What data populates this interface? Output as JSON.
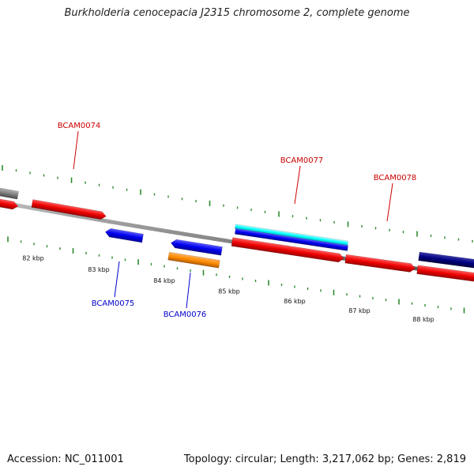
{
  "title": "Burkholderia cenocepacia J2315 chromosome 2, complete genome",
  "footer": {
    "accession": "Accession: NC_011001",
    "summary": "Topology: circular; Length: 3,217,062 bp; Genes: 2,819"
  },
  "scale_labels": [
    "82 kbp",
    "83 kbp",
    "84 kbp",
    "85 kbp",
    "86 kbp",
    "87 kbp",
    "88 kbp"
  ],
  "gene_labels": [
    {
      "name": "BCAM0074",
      "strand": "forward"
    },
    {
      "name": "BCAM0075",
      "strand": "reverse"
    },
    {
      "name": "BCAM0076",
      "strand": "reverse"
    },
    {
      "name": "BCAM0077",
      "strand": "forward"
    },
    {
      "name": "BCAM0078",
      "strand": "forward"
    }
  ],
  "colors": {
    "forward_cds": "#ff0000",
    "reverse_cds": "#0000ff",
    "gray_feature": "#808080",
    "cyan_feature": "#00ffff",
    "orange_feature": "#ff8c00",
    "navy_feature": "#000080",
    "tick": "#2e8b2e",
    "forward_label": "#cc0000",
    "reverse_label": "#0000cc",
    "backbone": "#888888"
  }
}
